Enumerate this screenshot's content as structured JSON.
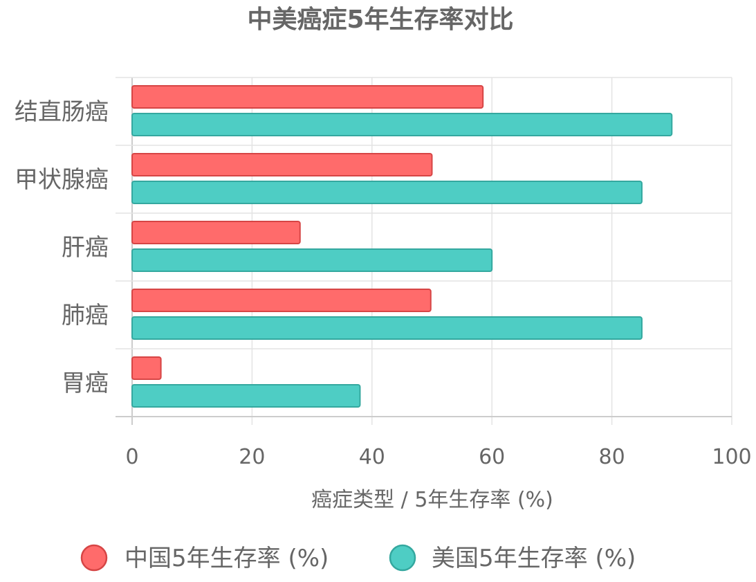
{
  "chart_data": {
    "type": "bar",
    "orientation": "horizontal",
    "title": "中美癌症5年生存率对比",
    "xlabel": "癌症类型 / 5年生存率 (%)",
    "ylabel": "",
    "xlim": [
      0,
      100
    ],
    "x_ticks": [
      "0",
      "20",
      "40",
      "60",
      "80",
      "100"
    ],
    "categories": [
      "结直肠癌",
      "甲状腺癌",
      "肝癌",
      "肺癌",
      "胃癌"
    ],
    "series": [
      {
        "name": "中国5年生存率 (%)",
        "values": [
          58.5,
          50,
          28,
          49.8,
          4.8
        ],
        "fill": "#ff6b6b",
        "stroke": "#d64545"
      },
      {
        "name": "美国5年生存率 (%)",
        "values": [
          90,
          85,
          60,
          85,
          38
        ],
        "fill": "#4ecdc4",
        "stroke": "#34a89f"
      }
    ],
    "grid": true,
    "legend": "bottom"
  }
}
